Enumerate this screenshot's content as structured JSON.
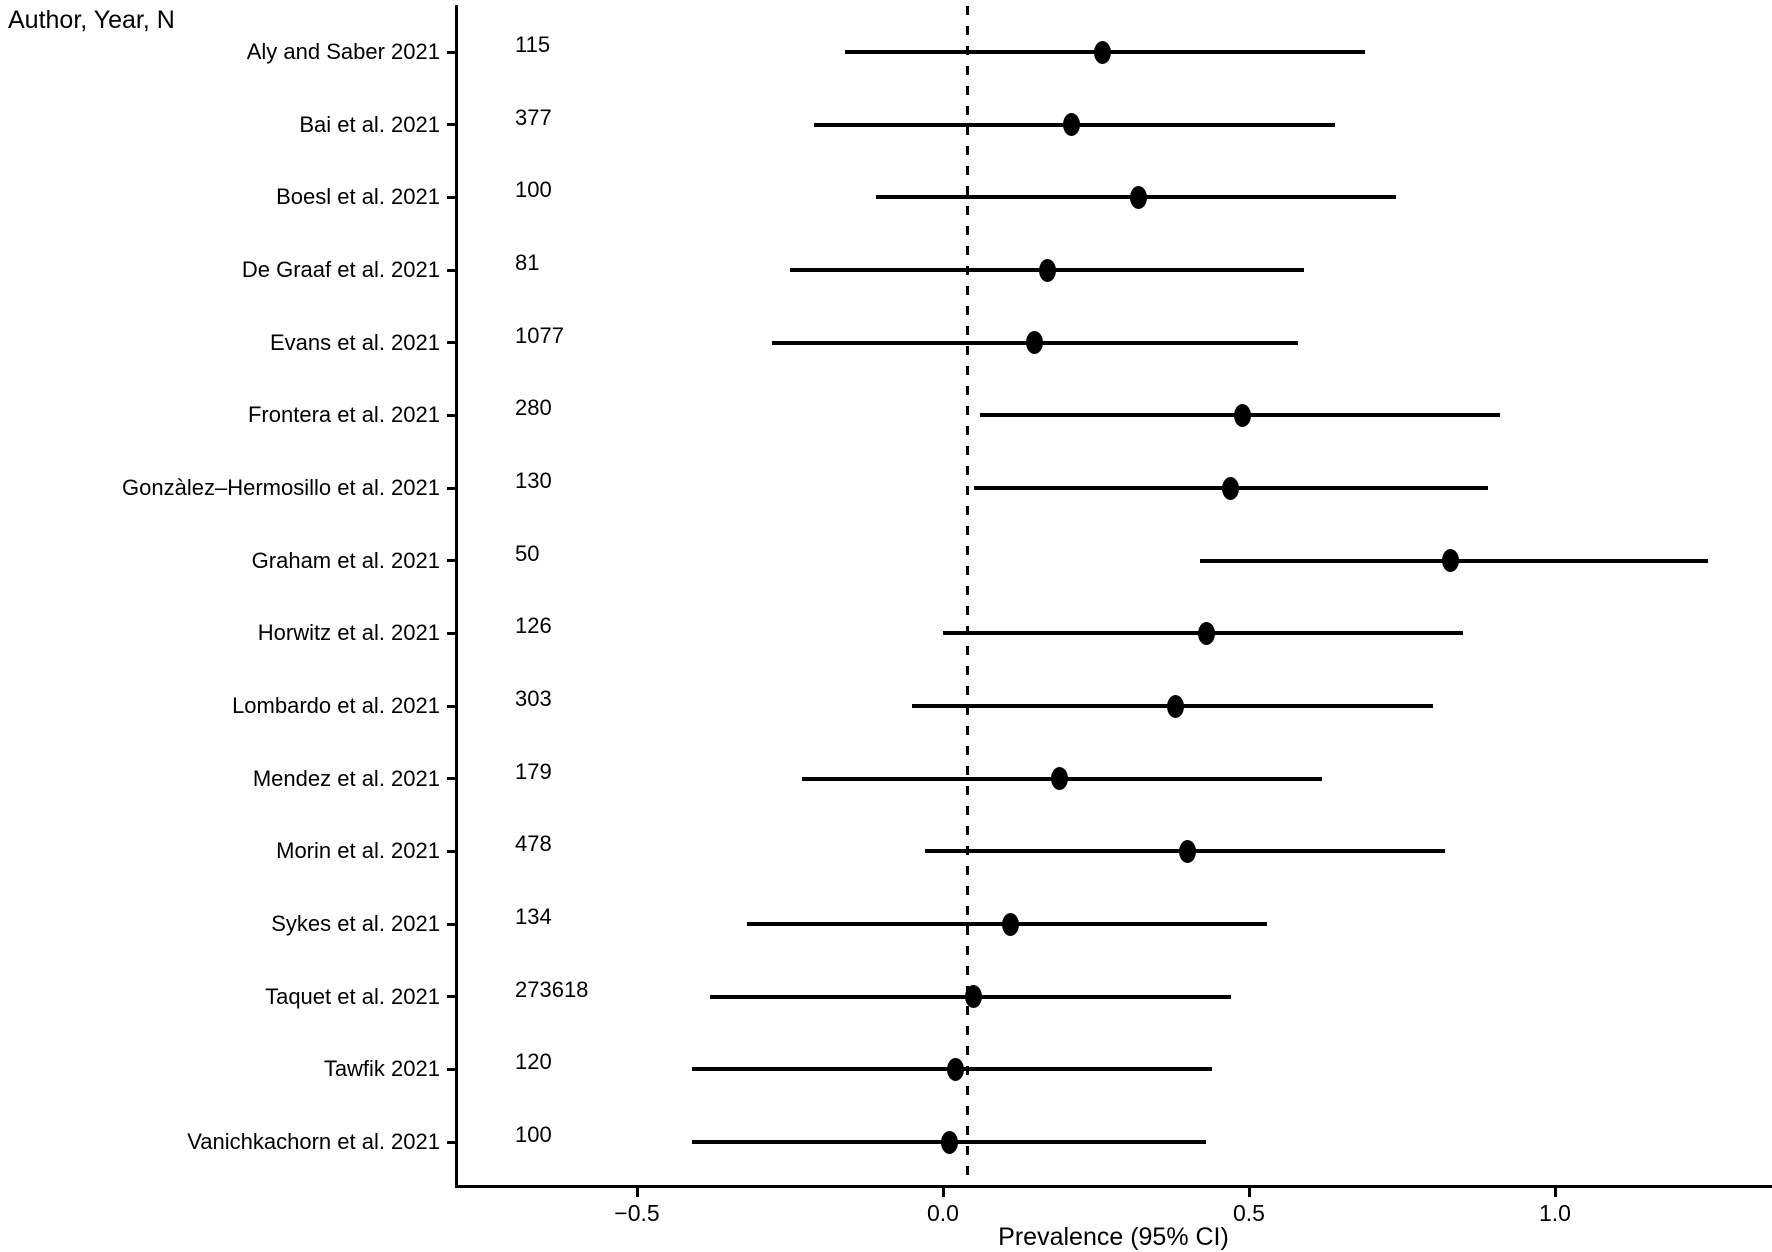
{
  "chart_data": {
    "type": "forest",
    "title": "",
    "corner_label": "Author, Year, N",
    "xlabel": "Prevalence (95% CI)",
    "ylabel": "",
    "xlim": [
      -0.79,
      1.35
    ],
    "grid": false,
    "legend": "none",
    "reference_line": {
      "x": 0.04,
      "style": "dashed"
    },
    "x_ticks": [
      {
        "value": -0.5,
        "label": "−0.5"
      },
      {
        "value": 0.0,
        "label": "0.0"
      },
      {
        "value": 0.5,
        "label": "0.5"
      },
      {
        "value": 1.0,
        "label": "1.0"
      }
    ],
    "studies": [
      {
        "label": "Aly and Saber 2021",
        "n": "115",
        "estimate": 0.26,
        "ci_low": -0.16,
        "ci_high": 0.69
      },
      {
        "label": "Bai et al. 2021",
        "n": "377",
        "estimate": 0.21,
        "ci_low": -0.21,
        "ci_high": 0.64
      },
      {
        "label": "Boesl et al. 2021",
        "n": "100",
        "estimate": 0.32,
        "ci_low": -0.11,
        "ci_high": 0.74
      },
      {
        "label": "De Graaf et al. 2021",
        "n": "81",
        "estimate": 0.17,
        "ci_low": -0.25,
        "ci_high": 0.59
      },
      {
        "label": "Evans et al. 2021",
        "n": "1077",
        "estimate": 0.15,
        "ci_low": -0.28,
        "ci_high": 0.58
      },
      {
        "label": "Frontera et al. 2021",
        "n": "280",
        "estimate": 0.49,
        "ci_low": 0.06,
        "ci_high": 0.91
      },
      {
        "label": "Gonzàlez–Hermosillo et al. 2021",
        "n": "130",
        "estimate": 0.47,
        "ci_low": 0.05,
        "ci_high": 0.89
      },
      {
        "label": "Graham et al. 2021",
        "n": "50",
        "estimate": 0.83,
        "ci_low": 0.42,
        "ci_high": 1.25
      },
      {
        "label": "Horwitz et al. 2021",
        "n": "126",
        "estimate": 0.43,
        "ci_low": 0.0,
        "ci_high": 0.85
      },
      {
        "label": "Lombardo et al. 2021",
        "n": "303",
        "estimate": 0.38,
        "ci_low": -0.05,
        "ci_high": 0.8
      },
      {
        "label": "Mendez et al. 2021",
        "n": "179",
        "estimate": 0.19,
        "ci_low": -0.23,
        "ci_high": 0.62
      },
      {
        "label": "Morin et al. 2021",
        "n": "478",
        "estimate": 0.4,
        "ci_low": -0.03,
        "ci_high": 0.82
      },
      {
        "label": "Sykes et al. 2021",
        "n": "134",
        "estimate": 0.11,
        "ci_low": -0.32,
        "ci_high": 0.53
      },
      {
        "label": "Taquet et al. 2021",
        "n": "273618",
        "estimate": 0.05,
        "ci_low": -0.38,
        "ci_high": 0.47
      },
      {
        "label": "Tawfik 2021",
        "n": "120",
        "estimate": 0.02,
        "ci_low": -0.41,
        "ci_high": 0.44
      },
      {
        "label": "Vanichkachorn et al. 2021",
        "n": "100",
        "estimate": 0.01,
        "ci_low": -0.41,
        "ci_high": 0.43
      }
    ],
    "colors": {
      "marker": "#000000",
      "ci_line": "#000000",
      "axis": "#000000",
      "text": "#000000",
      "background": "#ffffff"
    }
  }
}
